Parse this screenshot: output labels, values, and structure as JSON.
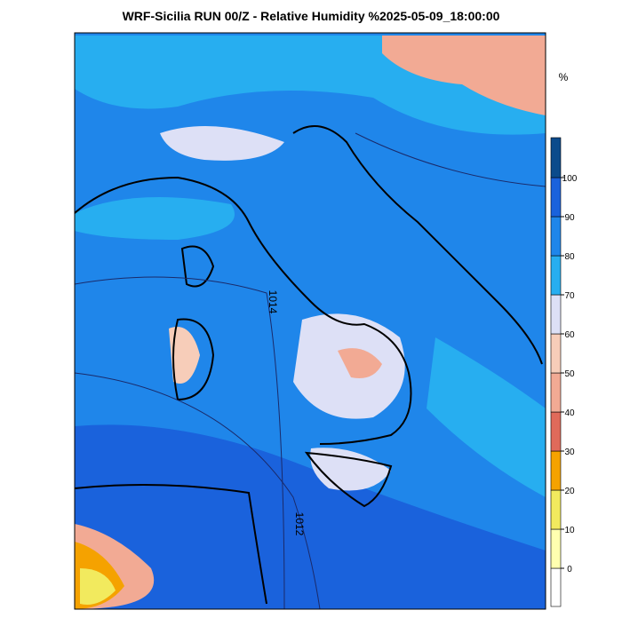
{
  "title": "WRF-Sicilia RUN 00/Z - Relative Humidity %2025-05-09_18:00:00",
  "colorbar": {
    "unit": "%",
    "ticks": [
      0,
      10,
      20,
      30,
      40,
      50,
      60,
      70,
      80,
      90,
      100
    ],
    "colors": [
      "#ffffff",
      "#ffffb0",
      "#f2ea5e",
      "#f5a200",
      "#e06a5a",
      "#f2aa94",
      "#f7cdb9",
      "#dde0f6",
      "#27aef0",
      "#1f86ea",
      "#1a62dc",
      "#0b4b8c"
    ]
  },
  "isobar_labels": [
    "1014",
    "1012"
  ]
}
